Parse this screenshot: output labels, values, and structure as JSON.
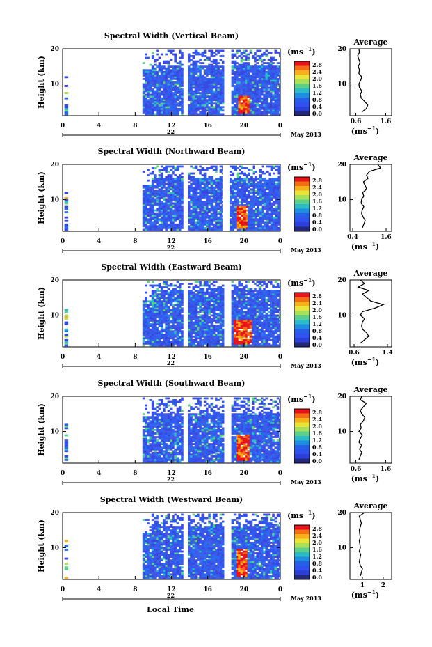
{
  "figure": {
    "x_axis_label": "Local Time",
    "date_label": "May 2013",
    "day_label": "22",
    "y_axis_label": "Height (km)",
    "unit_label": "(ms",
    "unit_exp": "−1",
    "colorbar_ticks": [
      "2.8",
      "2.4",
      "2.0",
      "1.6",
      "1.2",
      "0.8",
      "0.4",
      "0.0"
    ],
    "colorbar_colors": [
      "#e8141c",
      "#f46d14",
      "#f6b11a",
      "#e8e43a",
      "#a8e05a",
      "#5cd08a",
      "#2cbcc8",
      "#1e8ee0",
      "#2660e8",
      "#3050f0",
      "#2a40d8",
      "#24287a"
    ],
    "panel_color": "#3650e8",
    "average_title": "Average"
  },
  "chart_data": [
    {
      "type": "heatmap",
      "title": "Spectral Width (Vertical Beam)",
      "xlabel": "Local Time",
      "ylabel": "Height (km)",
      "x_ticks": [
        "0",
        "4",
        "8",
        "12",
        "16",
        "20",
        "0"
      ],
      "y_ticks": [
        "20",
        "10"
      ],
      "xlim": [
        0,
        24
      ],
      "ylim": [
        1,
        20
      ],
      "colorbar": {
        "label": "(ms-1)",
        "range": [
          0.0,
          2.8
        ]
      },
      "data_segments": [
        [
          0.2,
          0.6
        ],
        [
          8.8,
          13.3
        ],
        [
          13.8,
          17.8
        ],
        [
          18.6,
          24.0
        ]
      ],
      "high_region": {
        "x": [
          19.2,
          20.4
        ],
        "y": [
          1.5,
          6.5
        ],
        "value": 2.8
      },
      "profile": {
        "title": "Average",
        "xlabel": "(ms-1)",
        "x_ticks": [
          "0.6",
          "1.6"
        ],
        "y_ticks": [
          "20",
          "10"
        ],
        "xlim": [
          0.4,
          1.8
        ],
        "heights": [
          2,
          3,
          4,
          5,
          6,
          7,
          8,
          9,
          10,
          11,
          12,
          13,
          14,
          15,
          16,
          17,
          18,
          19,
          20
        ],
        "values": [
          0.8,
          0.95,
          1.0,
          0.9,
          0.78,
          0.75,
          0.8,
          0.72,
          0.7,
          0.76,
          0.8,
          0.7,
          0.72,
          0.68,
          0.74,
          0.7,
          0.66,
          0.72,
          0.7
        ]
      }
    },
    {
      "type": "heatmap",
      "title": "Spectral Width (Northward Beam)",
      "xlabel": "Local Time",
      "ylabel": "Height (km)",
      "x_ticks": [
        "0",
        "4",
        "8",
        "12",
        "16",
        "20",
        "0"
      ],
      "y_ticks": [
        "20",
        "10"
      ],
      "xlim": [
        0,
        24
      ],
      "ylim": [
        1,
        20
      ],
      "colorbar": {
        "label": "(ms-1)",
        "range": [
          0.0,
          2.8
        ]
      },
      "data_segments": [
        [
          0.2,
          0.6
        ],
        [
          8.8,
          13.3
        ],
        [
          13.8,
          17.6
        ],
        [
          18.4,
          24.0
        ]
      ],
      "high_region": {
        "x": [
          19.0,
          20.2
        ],
        "y": [
          1.5,
          8.0
        ],
        "value": 2.8
      },
      "profile": {
        "title": "Average",
        "xlabel": "(ms-1)",
        "x_ticks": [
          "0.4",
          "1.6"
        ],
        "y_ticks": [
          "20",
          "10"
        ],
        "xlim": [
          0.3,
          1.8
        ],
        "heights": [
          2,
          3,
          4,
          5,
          6,
          7,
          8,
          9,
          10,
          11,
          12,
          13,
          14,
          15,
          16,
          17,
          18,
          19,
          20
        ],
        "values": [
          0.75,
          0.8,
          0.85,
          0.78,
          0.72,
          0.74,
          0.8,
          0.7,
          0.72,
          0.8,
          0.76,
          0.9,
          0.85,
          0.78,
          0.95,
          0.9,
          1.0,
          1.4,
          1.3
        ]
      }
    },
    {
      "type": "heatmap",
      "title": "Spectral Width (Eastward Beam)",
      "xlabel": "Local Time",
      "ylabel": "Height (km)",
      "x_ticks": [
        "0",
        "4",
        "8",
        "12",
        "16",
        "20",
        "0"
      ],
      "y_ticks": [
        "20",
        "10"
      ],
      "xlim": [
        0,
        24
      ],
      "ylim": [
        1,
        20
      ],
      "colorbar": {
        "label": "(ms-1)",
        "range": [
          0.0,
          2.8
        ]
      },
      "data_segments": [
        [
          0.2,
          0.6
        ],
        [
          8.8,
          13.3
        ],
        [
          13.8,
          17.8
        ],
        [
          18.6,
          24.0
        ]
      ],
      "high_region": {
        "x": [
          18.8,
          20.6
        ],
        "y": [
          1.5,
          8.5
        ],
        "value": 2.8
      },
      "profile": {
        "title": "Average",
        "xlabel": "(ms-1)",
        "x_ticks": [
          "0.6",
          "1.4"
        ],
        "y_ticks": [
          "20",
          "10"
        ],
        "xlim": [
          0.5,
          1.5
        ],
        "heights": [
          2,
          3,
          4,
          5,
          6,
          7,
          8,
          9,
          10,
          11,
          12,
          13,
          14,
          15,
          16,
          17,
          18,
          19,
          20
        ],
        "values": [
          0.75,
          0.85,
          0.95,
          0.9,
          0.8,
          0.78,
          0.8,
          0.85,
          0.75,
          0.8,
          1.1,
          1.3,
          1.0,
          0.9,
          0.8,
          0.95,
          0.7,
          0.85,
          0.75
        ]
      }
    },
    {
      "type": "heatmap",
      "title": "Spectral Width (Southward Beam)",
      "xlabel": "Local Time",
      "ylabel": "Height (km)",
      "x_ticks": [
        "0",
        "4",
        "8",
        "12",
        "16",
        "20",
        "0"
      ],
      "y_ticks": [
        "20",
        "10"
      ],
      "xlim": [
        0,
        24
      ],
      "ylim": [
        1,
        20
      ],
      "colorbar": {
        "label": "(ms-1)",
        "range": [
          0.0,
          2.8
        ]
      },
      "data_segments": [
        [
          0.2,
          0.6
        ],
        [
          8.8,
          13.3
        ],
        [
          13.8,
          17.8
        ],
        [
          18.6,
          24.0
        ]
      ],
      "high_region": {
        "x": [
          19.0,
          20.4
        ],
        "y": [
          1.5,
          9.0
        ],
        "value": 2.8
      },
      "profile": {
        "title": "Average",
        "xlabel": "(ms-1)",
        "x_ticks": [
          "0.6",
          "1.6"
        ],
        "y_ticks": [
          "20",
          "10"
        ],
        "xlim": [
          0.4,
          1.8
        ],
        "heights": [
          2,
          3,
          4,
          5,
          6,
          7,
          8,
          9,
          10,
          11,
          12,
          13,
          14,
          15,
          16,
          17,
          18,
          19,
          20
        ],
        "values": [
          0.7,
          0.75,
          0.8,
          0.72,
          0.8,
          0.7,
          0.75,
          0.82,
          0.7,
          0.78,
          0.75,
          0.85,
          0.9,
          0.8,
          0.75,
          0.85,
          0.95,
          0.75,
          0.8
        ]
      }
    },
    {
      "type": "heatmap",
      "title": "Spectral Width (Westward Beam)",
      "xlabel": "Local Time",
      "ylabel": "Height (km)",
      "x_ticks": [
        "0",
        "4",
        "8",
        "12",
        "16",
        "20",
        "0"
      ],
      "y_ticks": [
        "20",
        "10"
      ],
      "xlim": [
        0,
        24
      ],
      "ylim": [
        1,
        20
      ],
      "colorbar": {
        "label": "(ms-1)",
        "range": [
          0.0,
          2.8
        ]
      },
      "data_segments": [
        [
          0.2,
          0.6
        ],
        [
          8.8,
          13.3
        ],
        [
          13.8,
          17.8
        ],
        [
          18.6,
          24.0
        ]
      ],
      "high_region": {
        "x": [
          19.0,
          20.2
        ],
        "y": [
          1.5,
          9.5
        ],
        "value": 2.8
      },
      "profile": {
        "title": "Average",
        "xlabel": "(ms-1)",
        "x_ticks": [
          "1",
          "2"
        ],
        "y_ticks": [
          "20",
          "10"
        ],
        "xlim": [
          0.4,
          2.4
        ],
        "heights": [
          2,
          3,
          4,
          5,
          6,
          7,
          8,
          9,
          10,
          11,
          12,
          13,
          14,
          15,
          16,
          17,
          18,
          19,
          20
        ],
        "values": [
          0.9,
          0.95,
          1.0,
          0.9,
          0.85,
          0.88,
          0.92,
          0.85,
          0.9,
          0.88,
          0.85,
          0.9,
          0.87,
          0.85,
          0.9,
          0.95,
          0.9,
          0.85,
          1.1
        ]
      }
    }
  ]
}
